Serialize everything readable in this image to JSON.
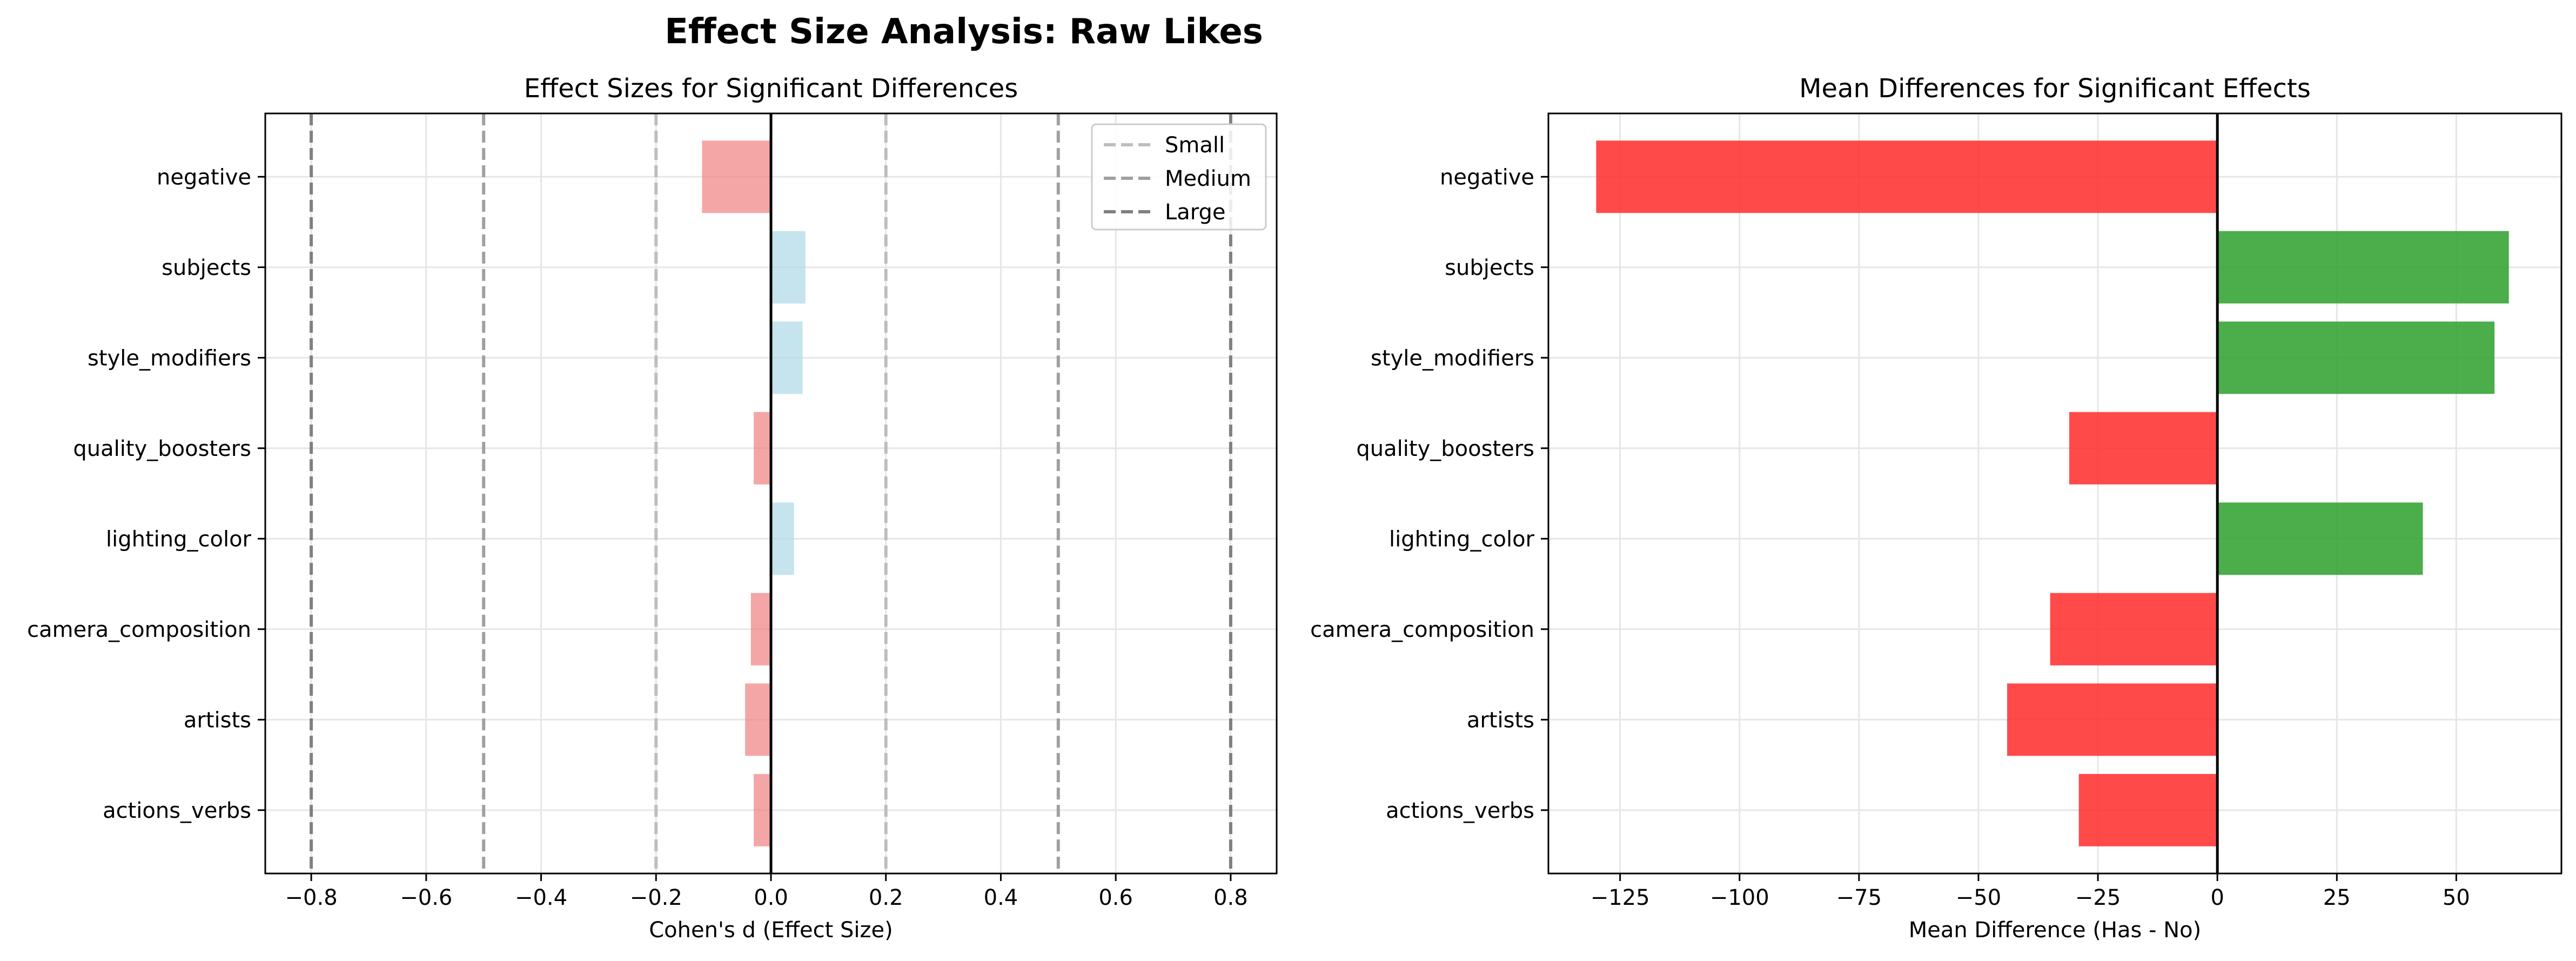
{
  "figure_title": "Effect Size Analysis: Raw Likes",
  "colors": {
    "positive_effect": "#add8e6",
    "negative_effect": "#f08080",
    "positive_diff": "#2ca02c",
    "negative_diff": "#ff2a2a",
    "small_line": "#bdbdbd",
    "medium_line": "#a0a0a0",
    "large_line": "#808080"
  },
  "chart_data": [
    {
      "type": "bar",
      "orientation": "horizontal",
      "title": "Effect Sizes for Significant Differences",
      "xlabel": "Cohen's d (Effect Size)",
      "ylabel": "",
      "categories": [
        "negative",
        "subjects",
        "style_modifiers",
        "quality_boosters",
        "lighting_color",
        "camera_composition",
        "artists",
        "actions_verbs"
      ],
      "values": [
        -0.12,
        0.06,
        0.055,
        -0.03,
        0.04,
        -0.035,
        -0.045,
        -0.03
      ],
      "xlim": [
        -0.88,
        0.88
      ],
      "xticks": [
        "−0.8",
        "−0.6",
        "−0.4",
        "−0.2",
        "0.0",
        "0.2",
        "0.4",
        "0.6",
        "0.8"
      ],
      "xtick_values": [
        -0.8,
        -0.6,
        -0.4,
        -0.2,
        0.0,
        0.2,
        0.4,
        0.6,
        0.8
      ],
      "reference_lines": [
        {
          "name": "Small",
          "values": [
            -0.2,
            0.2
          ]
        },
        {
          "name": "Medium",
          "values": [
            -0.5,
            0.5
          ]
        },
        {
          "name": "Large",
          "values": [
            -0.8,
            0.8
          ]
        }
      ],
      "legend": [
        "Small",
        "Medium",
        "Large"
      ],
      "legend_position": "top-right",
      "grid": true
    },
    {
      "type": "bar",
      "orientation": "horizontal",
      "title": "Mean Differences for Significant Effects",
      "xlabel": "Mean Difference (Has - No)",
      "ylabel": "",
      "categories": [
        "negative",
        "subjects",
        "style_modifiers",
        "quality_boosters",
        "lighting_color",
        "camera_composition",
        "artists",
        "actions_verbs"
      ],
      "values": [
        -130,
        61,
        58,
        -31,
        43,
        -35,
        -44,
        -29
      ],
      "xlim": [
        -140,
        72
      ],
      "xticks": [
        "−125",
        "−100",
        "−75",
        "−50",
        "−25",
        "0",
        "25",
        "50"
      ],
      "xtick_values": [
        -125,
        -100,
        -75,
        -50,
        -25,
        0,
        25,
        50
      ],
      "grid": true
    }
  ]
}
